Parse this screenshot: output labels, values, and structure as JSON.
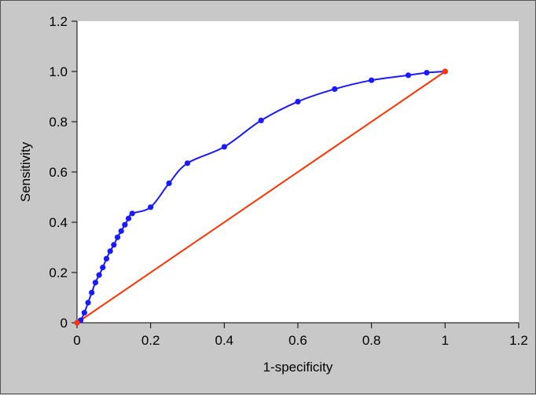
{
  "chart_data": {
    "type": "line",
    "title": "",
    "xlabel": "1-specificity",
    "ylabel": "Sensitivity",
    "xlim": [
      0,
      1.2
    ],
    "ylim": [
      0,
      1.2
    ],
    "xticks": [
      "0",
      "0.2",
      "0.4",
      "0.6",
      "0.8",
      "1",
      "1.2"
    ],
    "yticks": [
      "0",
      "0.2",
      "0.4",
      "0.6",
      "0.8",
      "1.0",
      "1.2"
    ],
    "grid": false,
    "legend": "none",
    "series": [
      {
        "color": "#1a1aff",
        "markers": true,
        "x": [
          0,
          0.01,
          0.02,
          0.03,
          0.04,
          0.05,
          0.06,
          0.07,
          0.08,
          0.09,
          0.1,
          0.11,
          0.12,
          0.13,
          0.14,
          0.15,
          0.2,
          0.25,
          0.3,
          0.4,
          0.5,
          0.6,
          0.7,
          0.8,
          0.9,
          0.95,
          1.0
        ],
        "y": [
          0,
          0.01,
          0.04,
          0.08,
          0.12,
          0.16,
          0.19,
          0.22,
          0.255,
          0.285,
          0.31,
          0.34,
          0.365,
          0.39,
          0.415,
          0.435,
          0.46,
          0.555,
          0.635,
          0.7,
          0.805,
          0.88,
          0.93,
          0.965,
          0.985,
          0.995,
          1.0
        ]
      },
      {
        "color": "#ff3300",
        "markers": false,
        "x": [
          0,
          1.0
        ],
        "y": [
          0,
          1.0
        ],
        "endpoint_markers": true
      }
    ]
  }
}
